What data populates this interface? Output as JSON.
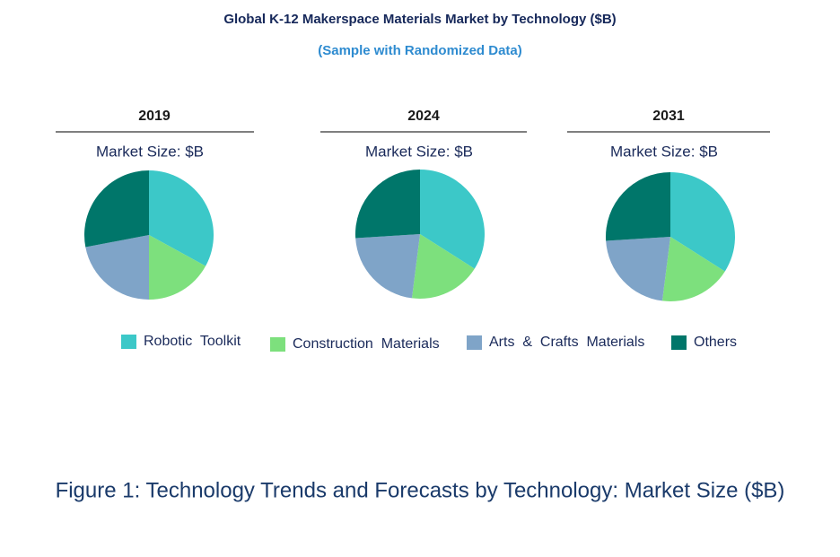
{
  "title": "Global K-12 Makerspace Materials Market by Technology ($B)",
  "subtitle": "(Sample with Randomized Data)",
  "caption": "Figure 1: Technology Trends and Forecasts by Technology: Market Size ($B)",
  "chart_data": [
    {
      "type": "pie",
      "title": "2019",
      "subtitle": "Market Size: $B",
      "categories": [
        "Robotic  Toolkit",
        "Construction  Materials",
        "Arts  &  Crafts  Materials",
        "Others"
      ],
      "colors": [
        "#3cc8c8",
        "#7de07d",
        "#7fa4c8",
        "#00766a"
      ],
      "values": [
        33,
        17,
        22,
        28
      ]
    },
    {
      "type": "pie",
      "title": "2024",
      "subtitle": "Market Size: $B",
      "categories": [
        "Robotic  Toolkit",
        "Construction  Materials",
        "Arts  &  Crafts  Materials",
        "Others"
      ],
      "colors": [
        "#3cc8c8",
        "#7de07d",
        "#7fa4c8",
        "#00766a"
      ],
      "values": [
        34,
        18,
        22,
        26
      ]
    },
    {
      "type": "pie",
      "title": "2031",
      "subtitle": "Market Size: $B",
      "categories": [
        "Robotic  Toolkit",
        "Construction  Materials",
        "Arts  &  Crafts  Materials",
        "Others"
      ],
      "colors": [
        "#3cc8c8",
        "#7de07d",
        "#7fa4c8",
        "#00766a"
      ],
      "values": [
        34,
        18,
        22,
        26
      ]
    }
  ]
}
